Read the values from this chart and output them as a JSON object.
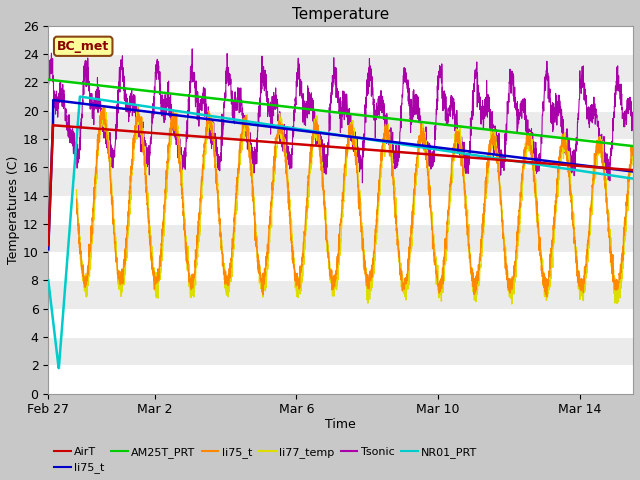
{
  "title": "Temperature",
  "xlabel": "Time",
  "ylabel": "Temperatures (C)",
  "ylim": [
    0,
    26
  ],
  "yticks": [
    0,
    2,
    4,
    6,
    8,
    10,
    12,
    14,
    16,
    18,
    20,
    22,
    24,
    26
  ],
  "xtick_positions": [
    0,
    3,
    7,
    11,
    15
  ],
  "xtick_labels": [
    "Feb 27",
    "Mar 2",
    "Mar 6",
    "Mar 10",
    "Mar 14"
  ],
  "total_days": 16.5,
  "fig_bg_color": "#c8c8c8",
  "plot_bg_color": "#e0e0e0",
  "band_light": "#ebebeb",
  "band_dark": "#d8d8d8",
  "annotation_text": "BC_met",
  "annotation_facecolor": "#ffff99",
  "annotation_edgecolor": "#8B4513",
  "annotation_textcolor": "#8B0000",
  "legend_entries": [
    {
      "label": "AirT",
      "color": "#cc0000"
    },
    {
      "label": "li75_t",
      "color": "#0000cc"
    },
    {
      "label": "AM25T_PRT",
      "color": "#00cc00"
    },
    {
      "label": "li75_t",
      "color": "#ff8800"
    },
    {
      "label": "li77_temp",
      "color": "#dddd00"
    },
    {
      "label": "Tsonic",
      "color": "#aa00aa"
    },
    {
      "label": "NR01_PRT",
      "color": "#00cccc"
    }
  ]
}
